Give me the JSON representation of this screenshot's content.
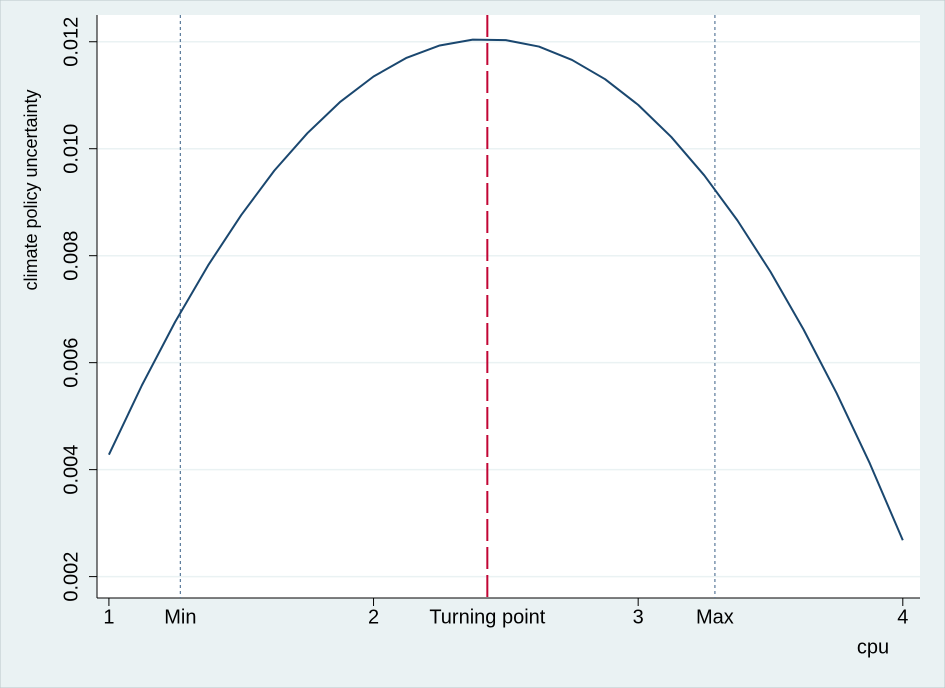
{
  "chart_data": {
    "type": "line",
    "y_label": "climate policy uncertainty",
    "x_label": "cpu",
    "x": [
      1,
      1.125,
      1.25,
      1.375,
      1.5,
      1.625,
      1.75,
      1.875,
      2,
      2.125,
      2.25,
      2.375,
      2.5,
      2.625,
      2.75,
      2.875,
      3,
      3.125,
      3.25,
      3.375,
      3.5,
      3.625,
      3.75,
      3.875,
      4
    ],
    "series": [
      {
        "color": "#1a476f",
        "values": [
          0.00428,
          0.00558,
          0.00676,
          0.00782,
          0.00876,
          0.00959,
          0.01029,
          0.01088,
          0.01135,
          0.0117,
          0.01193,
          0.01204,
          0.01203,
          0.01191,
          0.01166,
          0.0113,
          0.01082,
          0.01022,
          0.0095,
          0.00866,
          0.0077,
          0.00662,
          0.00543,
          0.00412,
          0.00268
        ]
      }
    ],
    "reference_lines": [
      {
        "x": 1.27,
        "label": "Min",
        "color": "#5a7a9a",
        "style": "dotted"
      },
      {
        "x": 2.43,
        "label": "Turning point",
        "color": "#c10534",
        "style": "dashed"
      },
      {
        "x": 3.29,
        "label": "Max",
        "color": "#5a7a9a",
        "style": "dotted"
      }
    ],
    "xlim": [
      0.955,
      4.065
    ],
    "xticks": [
      1,
      2,
      3,
      4
    ],
    "ylim": [
      0.0016,
      0.0125
    ],
    "yticks": [
      0.002,
      0.004,
      0.006,
      0.008,
      {
        "value": 0.01,
        "label": "0.010"
      },
      {
        "value": 0.012,
        "label": "0.012"
      }
    ],
    "grid": true
  }
}
